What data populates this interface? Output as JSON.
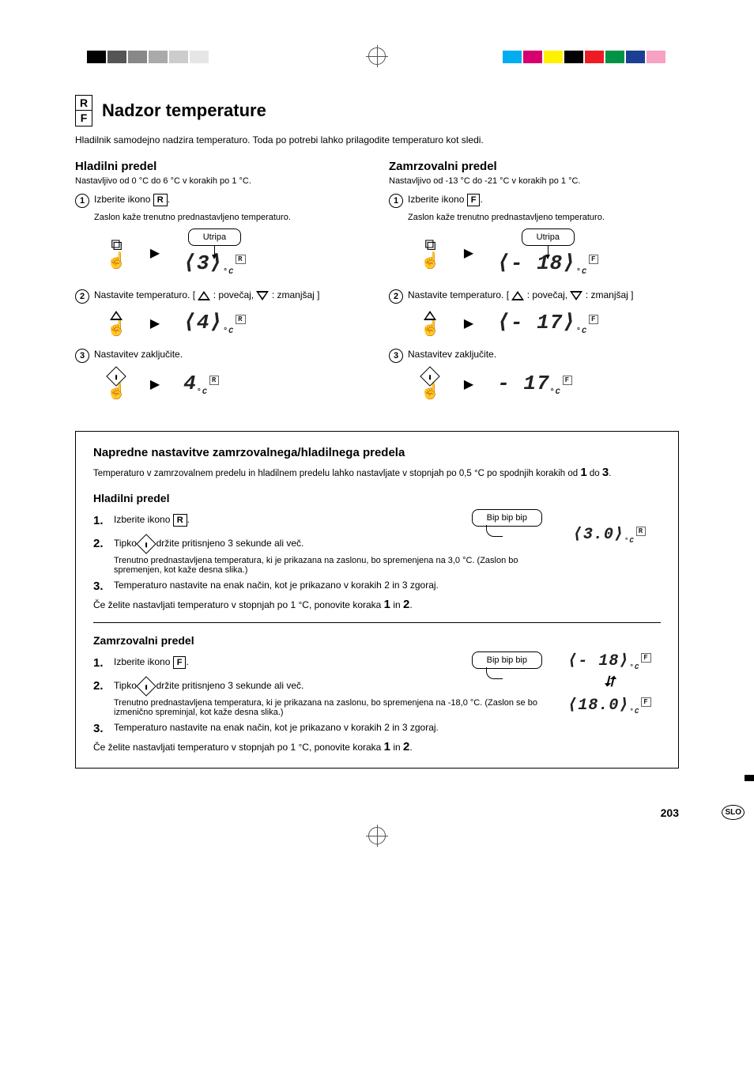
{
  "printMarks": {
    "topLeftSwatches": [
      "#000000",
      "#555555",
      "#888888",
      "#aaaaaa",
      "#cccccc",
      "#e6e6e6"
    ],
    "topRightSwatches": [
      "#00aeef",
      "#d6006e",
      "#fff200",
      "#000000",
      "#ed1c24",
      "#009444",
      "#1c3f94",
      "#f7a1c4"
    ]
  },
  "rfIcon": {
    "top": "R",
    "bottom": "F"
  },
  "title": "Nadzor temperature",
  "intro": "Hladilnik samodejno nadzira temperaturo. Toda po potrebi lahko prilagodite temperaturo kot sledi.",
  "fridge": {
    "heading": "Hladilni predel",
    "range": "Nastavljivo od 0 °C do 6 °C v korakih po 1 °C.",
    "step1": {
      "text": "Izberite ikono",
      "box": "R",
      "note": "Zaslon kaže trenutno prednastavljeno temperaturo.",
      "bubble": "Utripa",
      "display": "3",
      "badge": "R"
    },
    "step2": {
      "text": "Nastavite temperaturo. [",
      "up": ": povečaj,",
      "down": ": zmanjšaj ]",
      "display": "4",
      "badge": "R"
    },
    "step3": {
      "text": "Nastavitev zaključite.",
      "display": "4",
      "badge": "R"
    }
  },
  "freezer": {
    "heading": "Zamrzovalni predel",
    "range": "Nastavljivo od -13 °C do -21 °C v korakih po 1 °C.",
    "step1": {
      "text": "Izberite ikono",
      "box": "F",
      "note": "Zaslon kaže trenutno prednastavljeno temperaturo.",
      "bubble": "Utripa",
      "display": "- 18",
      "badge": "F"
    },
    "step2": {
      "text": "Nastavite temperaturo. [",
      "up": ": povečaj,",
      "down": ": zmanjšaj ]",
      "display": "- 17",
      "badge": "F"
    },
    "step3": {
      "text": "Nastavitev zaključite.",
      "display": "- 17",
      "badge": "F"
    }
  },
  "advanced": {
    "heading": "Napredne nastavitve zamrzovalnega/hladilnega predela",
    "intro_a": "Temperaturo v zamrzovalnem predelu in hladilnem predelu lahko nastavljate v stopnjah po 0,5 °C po spodnjih korakih od ",
    "intro_b": " do ",
    "intro_1": "1",
    "intro_3": "3",
    "fridge": {
      "heading": "Hladilni predel",
      "s1": {
        "text": "Izberite ikono",
        "box": "R"
      },
      "beep": "Bip bip bip",
      "s2": {
        "a": "Tipko ",
        "b": " držite pritisnjeno 3 sekunde ali več.",
        "note": "Trenutno prednastavljena temperatura, ki je prikazana na zaslonu, bo spremenjena na 3,0 °C. (Zaslon bo spremenjen, kot kaže desna slika.)"
      },
      "s3": "Temperaturo nastavite na enak način, kot je prikazano v korakih 2 in 3 zgoraj.",
      "repeat_a": "Če želite nastavljati temperaturo v stopnjah po 1 °C, ponovite koraka ",
      "repeat_b": " in ",
      "display": "3.0",
      "badge": "R"
    },
    "freezer": {
      "heading": "Zamrzovalni predel",
      "s1": {
        "text": "Izberite ikono",
        "box": "F"
      },
      "beep": "Bip bip bip",
      "s2": {
        "a": "Tipko ",
        "b": " držite pritisnjeno 3 sekunde ali več.",
        "note": "Trenutno prednastavljena temperatura, ki je prikazana na zaslonu, bo spremenjena na -18,0 °C. (Zaslon se bo izmenično spreminjal, kot kaže desna slika.)"
      },
      "s3": "Temperaturo nastavite na enak način, kot je prikazano v korakih 2 in 3 zgoraj.",
      "repeat_a": "Če želite nastavljati temperaturo v stopnjah po 1 °C, ponovite koraka ",
      "repeat_b": " in ",
      "display1": "- 18",
      "display2": "18.0",
      "badge": "F"
    }
  },
  "pageNumber": "203",
  "sideTab": "",
  "sloBadge": "SLO"
}
